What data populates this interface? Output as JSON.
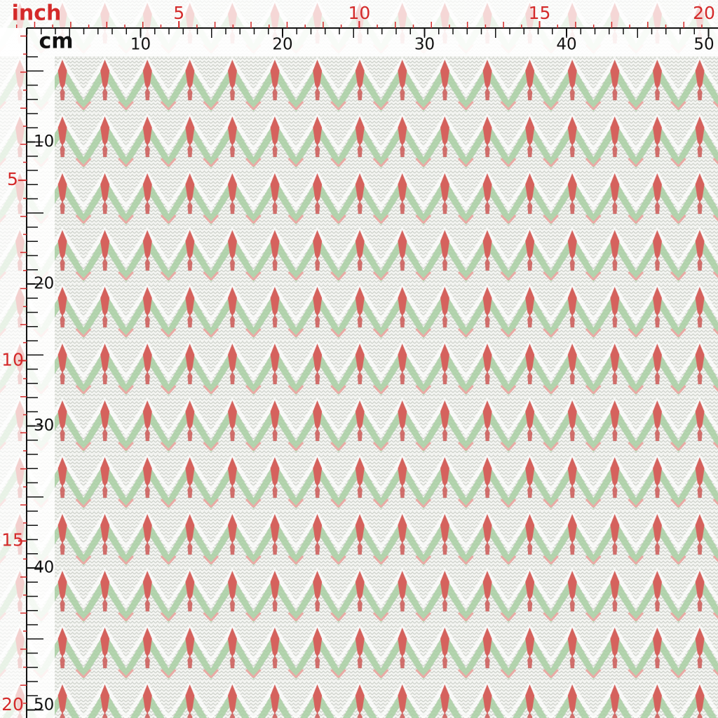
{
  "top_ruler": {
    "inch_unit": "inch",
    "inch_labels": [
      5,
      10,
      15,
      20
    ],
    "cm_unit": "cm",
    "cm_labels": [
      10,
      20,
      30,
      40,
      50
    ]
  },
  "left_ruler": {
    "inch_labels": [
      5,
      10,
      15,
      20
    ],
    "cm_labels": [
      10,
      20,
      30,
      40,
      50
    ]
  }
}
